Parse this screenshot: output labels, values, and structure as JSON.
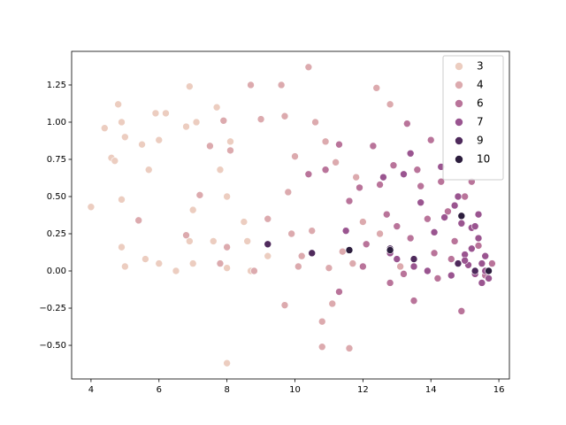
{
  "chart_data": {
    "type": "scatter",
    "xlim": [
      3.43,
      16.31
    ],
    "ylim": [
      -0.726,
      1.476
    ],
    "xticks": [
      4,
      6,
      8,
      10,
      12,
      14,
      16
    ],
    "yticks": [
      {
        "value": -0.5,
        "label": "−0.50"
      },
      {
        "value": -0.25,
        "label": "−0.25"
      },
      {
        "value": 0,
        "label": "0.00"
      },
      0.25,
      {
        "value": 0.5,
        "label": "0.50"
      },
      0.75,
      {
        "value": 1,
        "label": "1.00"
      },
      1.25
    ],
    "legend": "upper right",
    "series": [
      {
        "name": "3",
        "color": "#eccdc0",
        "x": [
          4.0,
          4.4,
          4.6,
          4.7,
          4.8,
          4.9,
          4.9,
          5.0,
          4.9,
          5.0,
          5.5,
          5.6,
          5.7,
          5.9,
          6.0,
          6.0,
          6.2,
          6.5,
          6.8,
          6.9,
          7.0,
          7.0,
          6.9,
          7.1,
          7.6,
          7.7,
          7.8,
          8.0,
          8.0,
          8.1,
          8.5,
          8.6,
          8.7,
          9.2,
          8.0
        ],
        "y": [
          0.43,
          0.96,
          0.76,
          0.74,
          1.12,
          1.0,
          0.16,
          0.03,
          0.48,
          0.9,
          0.85,
          0.08,
          0.68,
          1.06,
          0.05,
          0.88,
          1.06,
          0.0,
          0.97,
          1.24,
          0.05,
          0.41,
          0.2,
          1.0,
          0.2,
          1.1,
          0.68,
          0.02,
          -0.62,
          0.87,
          0.33,
          0.2,
          0.0,
          0.1,
          0.5
        ]
      },
      {
        "name": "4",
        "color": "#dcaaae",
        "x": [
          5.4,
          6.8,
          7.2,
          7.5,
          7.9,
          8.0,
          7.8,
          8.1,
          8.7,
          8.8,
          9.0,
          9.2,
          9.6,
          9.7,
          9.7,
          9.8,
          9.9,
          10.0,
          10.1,
          10.4,
          10.5,
          10.8,
          10.8,
          10.9,
          11.1,
          11.2,
          11.4,
          11.6,
          11.7,
          11.8,
          12.0,
          12.4,
          12.5,
          12.8,
          13.1,
          10.6,
          11.0,
          10.2
        ],
        "y": [
          0.34,
          0.24,
          0.51,
          0.84,
          1.01,
          0.16,
          0.05,
          0.81,
          1.25,
          0.0,
          1.02,
          0.35,
          1.25,
          1.04,
          -0.23,
          0.53,
          0.25,
          0.77,
          0.03,
          1.37,
          0.27,
          -0.34,
          -0.51,
          0.87,
          -0.22,
          0.73,
          0.13,
          -0.52,
          0.05,
          0.63,
          0.33,
          1.23,
          0.25,
          1.12,
          0.03,
          1.0,
          0.02,
          0.1
        ]
      },
      {
        "name": "6",
        "color": "#b9749a",
        "x": [
          10.4,
          10.9,
          11.3,
          11.6,
          11.9,
          12.1,
          12.3,
          12.5,
          12.7,
          12.8,
          12.9,
          13.0,
          13.2,
          13.3,
          13.4,
          13.5,
          13.6,
          13.7,
          13.9,
          14.0,
          14.1,
          14.2,
          14.3,
          14.5,
          14.6,
          14.7,
          14.9,
          15.0,
          15.2,
          15.4,
          15.6,
          15.8,
          11.3,
          12.0
        ],
        "y": [
          0.65,
          0.68,
          0.85,
          0.47,
          0.56,
          0.18,
          0.84,
          0.58,
          0.38,
          -0.08,
          0.71,
          0.3,
          -0.02,
          0.99,
          0.22,
          -0.2,
          0.68,
          0.57,
          0.35,
          0.88,
          0.12,
          -0.05,
          0.6,
          0.4,
          0.08,
          0.2,
          -0.27,
          0.5,
          0.6,
          0.17,
          -0.03,
          0.05,
          -0.14,
          0.03
        ]
      },
      {
        "name": "7",
        "color": "#9a5590",
        "x": [
          11.5,
          12.6,
          12.8,
          13.0,
          13.2,
          13.4,
          13.5,
          13.7,
          13.9,
          14.1,
          14.3,
          14.4,
          14.6,
          14.8,
          14.9,
          15.0,
          15.1,
          15.2,
          15.3,
          15.4,
          15.5,
          15.6,
          15.7,
          15.2,
          15.4,
          15.6,
          15.5,
          15.0,
          14.7,
          15.3
        ],
        "y": [
          0.27,
          0.63,
          0.12,
          0.08,
          0.65,
          0.79,
          0.03,
          0.46,
          0.0,
          0.26,
          0.7,
          0.36,
          -0.03,
          0.5,
          0.32,
          0.11,
          0.04,
          0.29,
          -0.02,
          0.22,
          0.05,
          0.1,
          -0.05,
          0.15,
          0.38,
          0.0,
          -0.08,
          0.07,
          0.44,
          0.3
        ]
      },
      {
        "name": "9",
        "color": "#4f2a5c",
        "x": [
          9.2,
          10.5,
          12.8,
          13.5,
          14.8,
          15.3
        ],
        "y": [
          0.18,
          0.12,
          0.15,
          0.08,
          0.05,
          0.0
        ]
      },
      {
        "name": "10",
        "color": "#2c1d3d",
        "x": [
          11.6,
          12.8,
          15.7,
          14.9
        ],
        "y": [
          0.14,
          0.14,
          0.0,
          0.37
        ]
      }
    ]
  }
}
